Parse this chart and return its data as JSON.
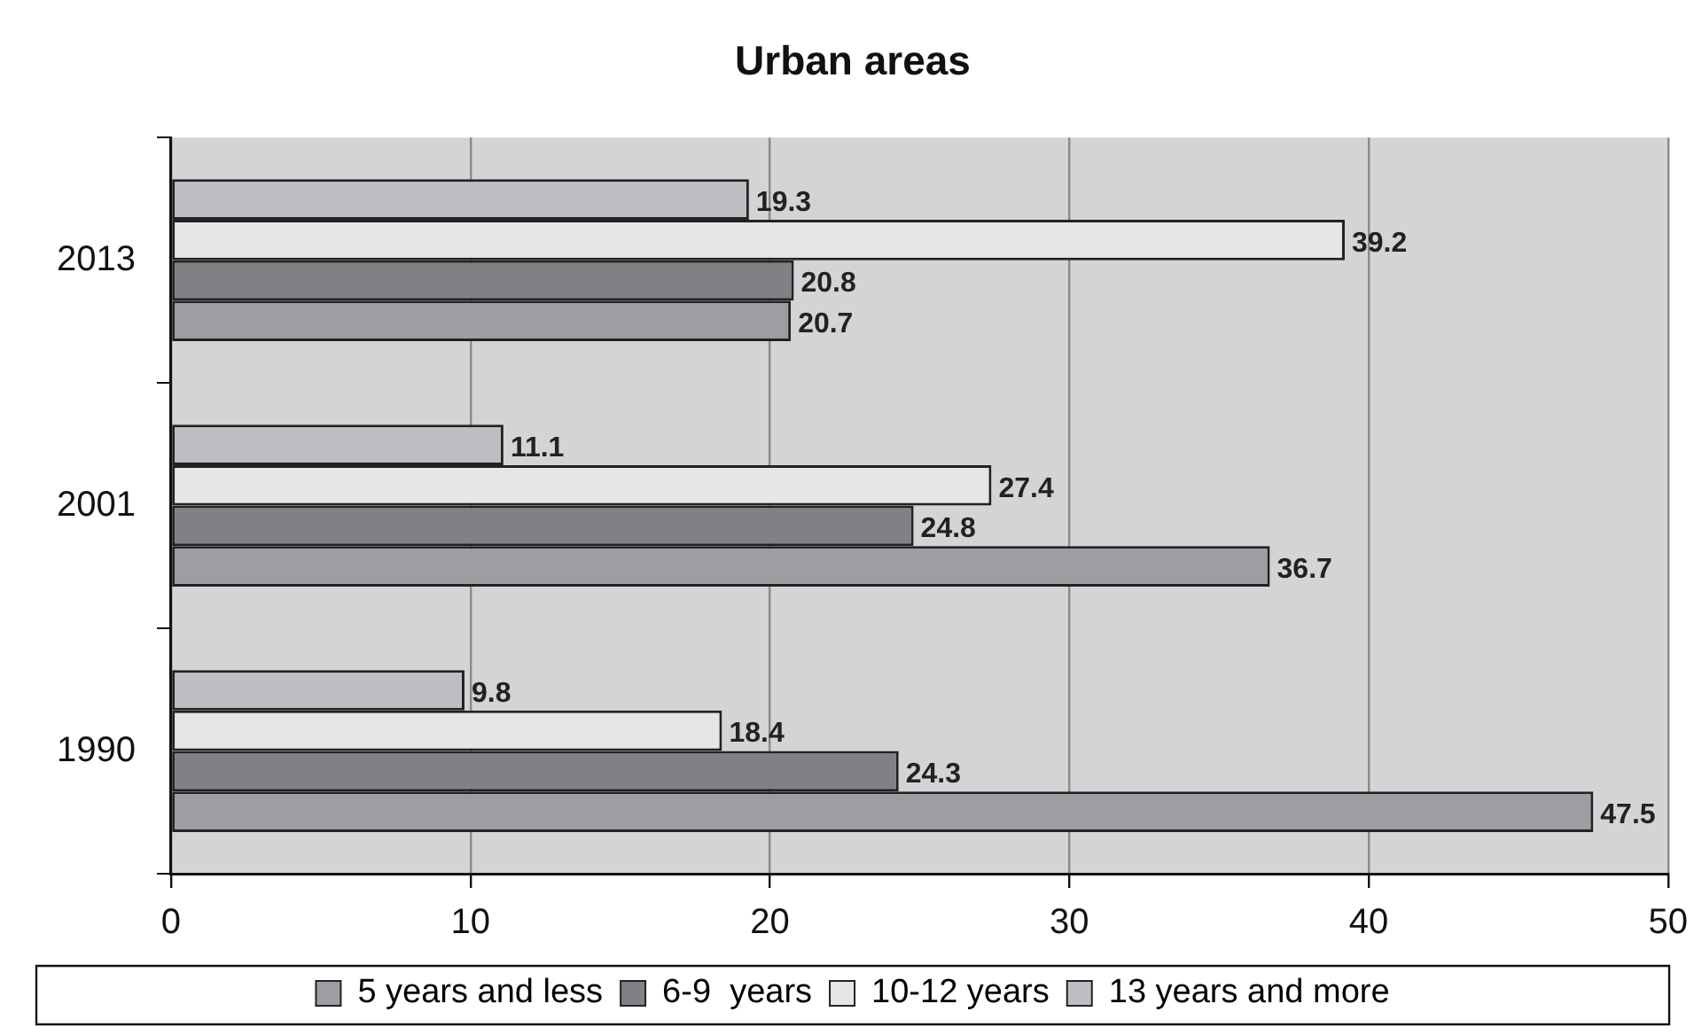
{
  "chart_data": {
    "type": "bar",
    "orientation": "horizontal",
    "title": "Urban areas",
    "categories": [
      "2013",
      "2001",
      "1990"
    ],
    "series": [
      {
        "name": "5 years and less",
        "color": "#9d9ea2",
        "values": [
          20.7,
          36.7,
          47.5
        ]
      },
      {
        "name": "6-9  years",
        "color": "#808185",
        "values": [
          20.8,
          24.8,
          24.3
        ]
      },
      {
        "name": "10-12 years",
        "color": "#e5e6e8",
        "values": [
          39.2,
          27.4,
          18.4
        ]
      },
      {
        "name": "13 years and more",
        "color": "#bdbec1",
        "values": [
          19.3,
          11.1,
          9.8
        ]
      }
    ],
    "xlim": [
      0,
      50
    ],
    "xticks": [
      0,
      10,
      20,
      30,
      40,
      50
    ],
    "grid": "x",
    "legend": "bottom",
    "data_labels": true
  }
}
